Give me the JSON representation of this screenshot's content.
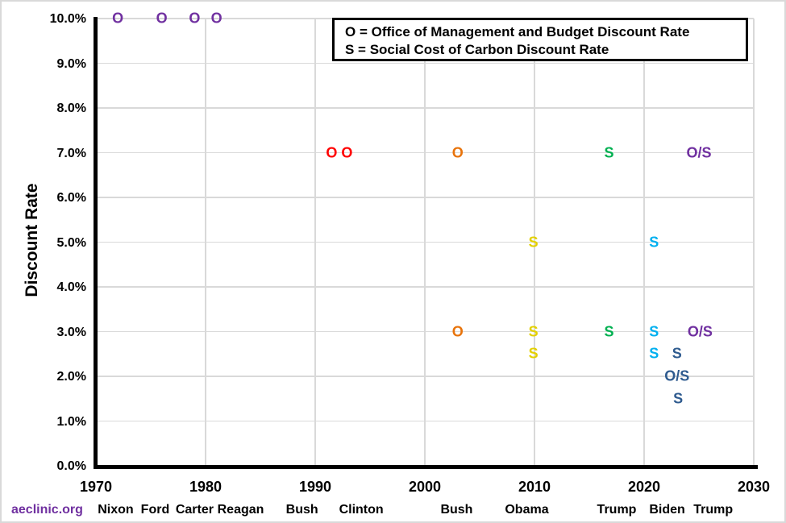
{
  "page": {
    "background": "#FFFFFF",
    "border_color": "#D9D9D9"
  },
  "footer": {
    "brand": "aeclinic.org",
    "brand_color": "#7030A0"
  },
  "legend": {
    "line1": "O = Office of Management and Budget Discount Rate",
    "line2": "S = Social Cost of Carbon Discount Rate"
  },
  "colors": {
    "purple": "#7030A0",
    "red": "#FF0000",
    "orange": "#E8730A",
    "yellow": "#E3D000",
    "green": "#00B050",
    "cyan": "#00B0F0",
    "darkblue": "#2F5B8F",
    "gridline": "#D9D9D9",
    "axis": "#000000"
  },
  "chart_data": {
    "type": "scatter",
    "title": "",
    "xlabel": "",
    "ylabel": "Discount Rate",
    "xlim": [
      1970,
      2030
    ],
    "ylim": [
      0,
      10
    ],
    "grid": true,
    "legend_position": "top-right",
    "legend_entries": [
      "O = Office of Management and Budget Discount Rate",
      "S = Social Cost of Carbon Discount Rate"
    ],
    "x_ticks": [
      {
        "value": 1970,
        "label": "1970"
      },
      {
        "value": 1980,
        "label": "1980"
      },
      {
        "value": 1990,
        "label": "1990"
      },
      {
        "value": 2000,
        "label": "2000"
      },
      {
        "value": 2010,
        "label": "2010"
      },
      {
        "value": 2020,
        "label": "2020"
      },
      {
        "value": 2030,
        "label": "2030"
      }
    ],
    "y_ticks": [
      {
        "value": 0,
        "label": "0.0%"
      },
      {
        "value": 1,
        "label": "1.0%"
      },
      {
        "value": 2,
        "label": "2.0%"
      },
      {
        "value": 3,
        "label": "3.0%"
      },
      {
        "value": 4,
        "label": "4.0%"
      },
      {
        "value": 5,
        "label": "5.0%"
      },
      {
        "value": 6,
        "label": "6.0%"
      },
      {
        "value": 7,
        "label": "7.0%"
      },
      {
        "value": 8,
        "label": "8.0%"
      },
      {
        "value": 9,
        "label": "9.0%"
      },
      {
        "value": 10,
        "label": "10.0%"
      }
    ],
    "v_gridline_years": [
      1980,
      1990,
      2000,
      2010,
      2020,
      2030
    ],
    "h_gridline_rates": [
      1,
      2,
      3,
      4,
      5,
      6,
      7,
      8,
      9,
      10
    ],
    "points": [
      {
        "year": 1972,
        "rate": 10.0,
        "label": "O",
        "color_key": "purple"
      },
      {
        "year": 1976,
        "rate": 10.0,
        "label": "O",
        "color_key": "purple"
      },
      {
        "year": 1979,
        "rate": 10.0,
        "label": "O",
        "color_key": "purple"
      },
      {
        "year": 1981,
        "rate": 10.0,
        "label": "O",
        "color_key": "purple"
      },
      {
        "year": 1991.5,
        "rate": 7.0,
        "label": "O",
        "color_key": "red"
      },
      {
        "year": 1992.9,
        "rate": 7.0,
        "label": "O",
        "color_key": "red"
      },
      {
        "year": 2003,
        "rate": 7.0,
        "label": "O",
        "color_key": "orange"
      },
      {
        "year": 2003,
        "rate": 3.0,
        "label": "O",
        "color_key": "orange"
      },
      {
        "year": 2009.9,
        "rate": 5.0,
        "label": "S",
        "color_key": "yellow"
      },
      {
        "year": 2009.9,
        "rate": 3.0,
        "label": "S",
        "color_key": "yellow"
      },
      {
        "year": 2009.9,
        "rate": 2.5,
        "label": "S",
        "color_key": "yellow"
      },
      {
        "year": 2016.8,
        "rate": 7.0,
        "label": "S",
        "color_key": "green"
      },
      {
        "year": 2016.8,
        "rate": 3.0,
        "label": "S",
        "color_key": "green"
      },
      {
        "year": 2020.9,
        "rate": 5.0,
        "label": "S",
        "color_key": "cyan"
      },
      {
        "year": 2020.9,
        "rate": 3.0,
        "label": "S",
        "color_key": "cyan"
      },
      {
        "year": 2020.9,
        "rate": 2.5,
        "label": "S",
        "color_key": "cyan"
      },
      {
        "year": 2023,
        "rate": 2.5,
        "label": "S",
        "color_key": "darkblue"
      },
      {
        "year": 2023,
        "rate": 2.0,
        "label": "O/S",
        "color_key": "darkblue"
      },
      {
        "year": 2023.1,
        "rate": 1.5,
        "label": "S",
        "color_key": "darkblue"
      },
      {
        "year": 2025,
        "rate": 7.0,
        "label": "O/S",
        "color_key": "purple"
      },
      {
        "year": 2025.1,
        "rate": 3.0,
        "label": "O/S",
        "color_key": "purple"
      }
    ],
    "presidents": [
      {
        "name": "Nixon",
        "year_center": 1971.8
      },
      {
        "name": "Ford",
        "year_center": 1975.4
      },
      {
        "name": "Carter",
        "year_center": 1979.0
      },
      {
        "name": "Reagan",
        "year_center": 1983.2
      },
      {
        "name": "Bush",
        "year_center": 1988.8
      },
      {
        "name": "Clinton",
        "year_center": 1994.2
      },
      {
        "name": "Bush",
        "year_center": 2002.9
      },
      {
        "name": "Obama",
        "year_center": 2009.3
      },
      {
        "name": "Trump",
        "year_center": 2017.5
      },
      {
        "name": "Biden",
        "year_center": 2022.1
      },
      {
        "name": "Trump",
        "year_center": 2026.3
      }
    ]
  }
}
